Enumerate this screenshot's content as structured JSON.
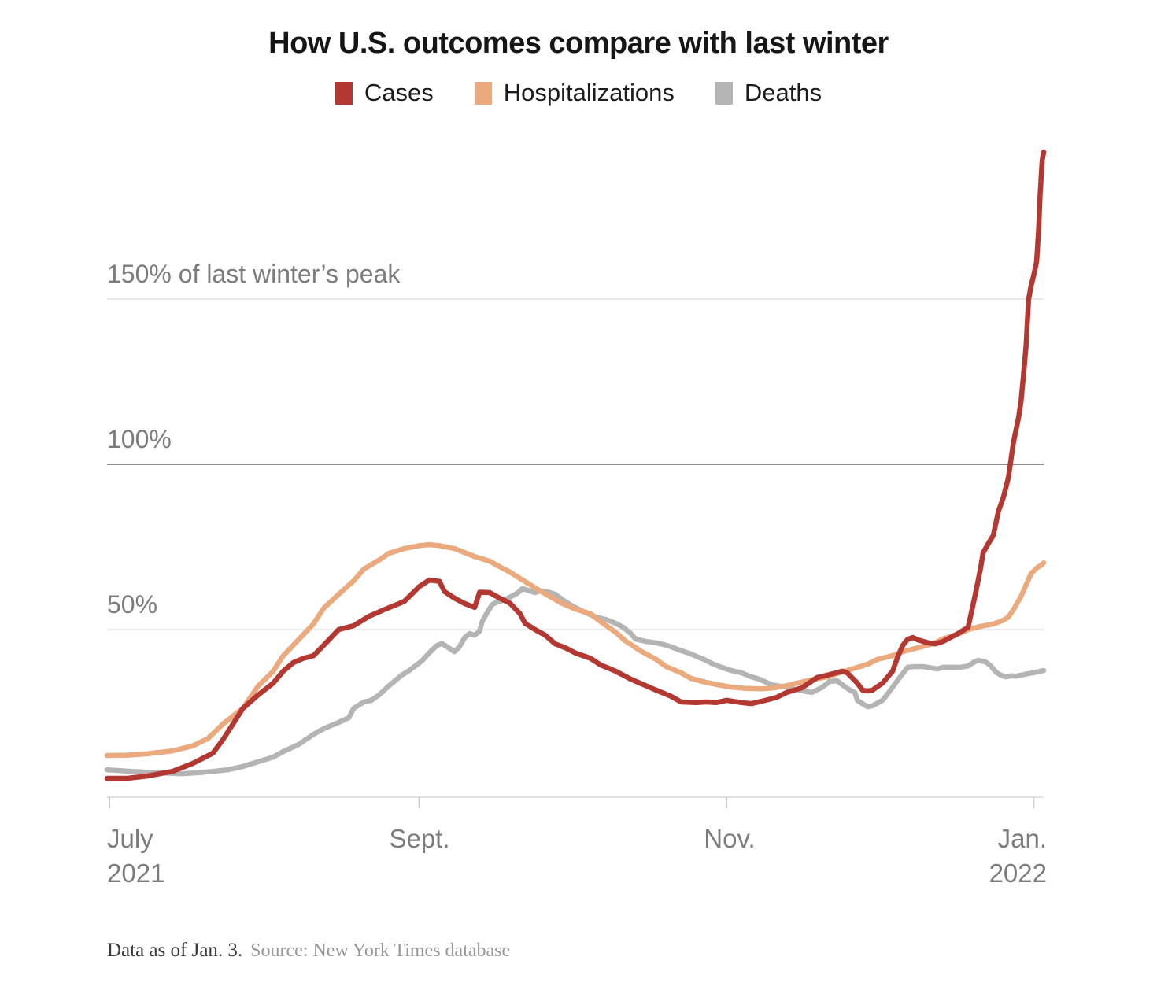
{
  "title": "How U.S. outcomes compare with last winter",
  "footer": {
    "note": "Data as of Jan. 3.",
    "source": "Source: New York Times database"
  },
  "chart_data": {
    "type": "line",
    "title": "How U.S. outcomes compare with last winter",
    "x_unit": "days since July 1, 2021",
    "x_domain": [
      0,
      186
    ],
    "y_unit": "percent of last winter's peak",
    "ylim": [
      0,
      200
    ],
    "grid": "horizontal-only",
    "legend_position": "top-center",
    "gridlines": [
      {
        "value": 50,
        "label": "50%",
        "strong": false
      },
      {
        "value": 100,
        "label": "100%",
        "strong": true
      },
      {
        "value": 150,
        "label": "150% of last winter’s peak",
        "strong": false
      }
    ],
    "x_ticks": [
      {
        "day": 0,
        "label": "July",
        "sublabel": "2021"
      },
      {
        "day": 62,
        "label": "Sept.",
        "sublabel": ""
      },
      {
        "day": 123,
        "label": "Nov.",
        "sublabel": ""
      },
      {
        "day": 184,
        "label": "Jan.",
        "sublabel": "2022"
      }
    ],
    "series": [
      {
        "name": "Cases",
        "color": "#b43832",
        "points": [
          [
            0,
            5
          ],
          [
            4,
            5
          ],
          [
            8,
            5.7
          ],
          [
            13,
            7.1
          ],
          [
            17,
            9.5
          ],
          [
            21,
            12.6
          ],
          [
            23,
            16.7
          ],
          [
            25,
            21.4
          ],
          [
            27,
            26.2
          ],
          [
            30,
            30.2
          ],
          [
            33,
            33.8
          ],
          [
            35,
            37.4
          ],
          [
            37,
            40
          ],
          [
            39,
            41.3
          ],
          [
            41,
            42.1
          ],
          [
            43,
            45.2
          ],
          [
            46,
            50
          ],
          [
            49,
            51.2
          ],
          [
            52,
            54
          ],
          [
            55,
            56
          ],
          [
            59,
            58.5
          ],
          [
            62,
            63
          ],
          [
            64,
            65
          ],
          [
            66,
            64.6
          ],
          [
            67,
            61.5
          ],
          [
            69,
            59.5
          ],
          [
            71,
            57.9
          ],
          [
            73,
            56.7
          ],
          [
            74,
            61.3
          ],
          [
            76,
            61.2
          ],
          [
            78,
            59.5
          ],
          [
            80,
            58
          ],
          [
            82,
            54.8
          ],
          [
            83,
            51.9
          ],
          [
            85,
            50
          ],
          [
            87,
            48.3
          ],
          [
            89,
            45.7
          ],
          [
            91,
            44.5
          ],
          [
            93,
            42.9
          ],
          [
            96,
            41.3
          ],
          [
            98,
            39.3
          ],
          [
            101,
            37.4
          ],
          [
            104,
            35
          ],
          [
            109,
            31.7
          ],
          [
            112,
            29.8
          ],
          [
            114,
            28.1
          ],
          [
            117,
            27.9
          ],
          [
            119,
            28.1
          ],
          [
            121,
            27.9
          ],
          [
            123,
            28.6
          ],
          [
            126,
            27.9
          ],
          [
            128,
            27.6
          ],
          [
            130,
            28.3
          ],
          [
            133,
            29.5
          ],
          [
            135,
            31
          ],
          [
            138,
            32.4
          ],
          [
            141,
            35.5
          ],
          [
            143,
            36.2
          ],
          [
            146,
            37.4
          ],
          [
            147,
            36.9
          ],
          [
            149,
            33.8
          ],
          [
            150,
            31.7
          ],
          [
            151,
            31.4
          ],
          [
            152,
            31.7
          ],
          [
            154,
            33.8
          ],
          [
            156,
            37.4
          ],
          [
            157,
            41.7
          ],
          [
            158,
            45.2
          ],
          [
            159,
            47.1
          ],
          [
            160,
            47.6
          ],
          [
            161,
            46.9
          ],
          [
            163,
            46
          ],
          [
            164.5,
            45.7
          ],
          [
            166,
            46.4
          ],
          [
            167.5,
            47.6
          ],
          [
            169,
            48.8
          ],
          [
            171,
            50.7
          ],
          [
            172,
            57.6
          ],
          [
            172.6,
            62
          ],
          [
            173.4,
            68
          ],
          [
            174,
            73.3
          ],
          [
            175,
            76
          ],
          [
            176,
            78.5
          ],
          [
            177,
            85.7
          ],
          [
            178,
            90
          ],
          [
            179,
            96
          ],
          [
            180,
            106.6
          ],
          [
            181,
            114
          ],
          [
            181.5,
            119
          ],
          [
            182,
            127
          ],
          [
            182.5,
            135.7
          ],
          [
            183,
            149.8
          ],
          [
            183.5,
            154
          ],
          [
            184,
            157
          ],
          [
            184.6,
            161.2
          ],
          [
            185,
            171
          ],
          [
            185.3,
            181.7
          ],
          [
            185.7,
            191.9
          ],
          [
            186,
            194.5
          ]
        ]
      },
      {
        "name": "Hospitalizations",
        "color": "#ebaa7d",
        "points": [
          [
            0,
            11.9
          ],
          [
            4,
            12
          ],
          [
            8,
            12.4
          ],
          [
            13,
            13.3
          ],
          [
            17,
            14.8
          ],
          [
            20,
            17
          ],
          [
            23,
            21.4
          ],
          [
            25,
            23.8
          ],
          [
            27,
            26.2
          ],
          [
            30,
            32.9
          ],
          [
            33,
            37.4
          ],
          [
            35,
            42.1
          ],
          [
            38,
            46.9
          ],
          [
            41,
            51.7
          ],
          [
            43,
            56.4
          ],
          [
            46,
            60.7
          ],
          [
            49,
            64.8
          ],
          [
            51,
            68.3
          ],
          [
            54,
            71
          ],
          [
            56,
            73.1
          ],
          [
            59,
            74.5
          ],
          [
            62,
            75.4
          ],
          [
            64,
            75.7
          ],
          [
            66,
            75.4
          ],
          [
            69,
            74.5
          ],
          [
            71,
            73.3
          ],
          [
            73,
            72.1
          ],
          [
            76,
            70.7
          ],
          [
            78,
            69
          ],
          [
            80,
            67.4
          ],
          [
            82,
            65.5
          ],
          [
            84,
            63.6
          ],
          [
            86,
            61.7
          ],
          [
            88,
            60
          ],
          [
            90,
            58.2
          ],
          [
            93,
            56.2
          ],
          [
            96,
            54.8
          ],
          [
            98,
            52.4
          ],
          [
            101,
            49.2
          ],
          [
            103,
            46.5
          ],
          [
            106,
            43.5
          ],
          [
            109,
            41
          ],
          [
            111,
            38.8
          ],
          [
            114,
            36.9
          ],
          [
            116,
            35.2
          ],
          [
            119,
            34
          ],
          [
            122,
            33.1
          ],
          [
            124,
            32.6
          ],
          [
            127,
            32.2
          ],
          [
            130,
            32.1
          ],
          [
            132,
            32.3
          ],
          [
            135,
            33
          ],
          [
            137,
            33.8
          ],
          [
            140,
            34.8
          ],
          [
            143,
            35.7
          ],
          [
            145,
            36.7
          ],
          [
            148,
            38.1
          ],
          [
            151,
            39.5
          ],
          [
            153,
            41
          ],
          [
            156,
            42.1
          ],
          [
            158,
            43.3
          ],
          [
            161,
            44.5
          ],
          [
            164,
            45.7
          ],
          [
            166,
            47.2
          ],
          [
            169,
            48.6
          ],
          [
            171,
            50
          ],
          [
            173,
            50.8
          ],
          [
            176,
            51.7
          ],
          [
            178,
            52.8
          ],
          [
            179,
            53.8
          ],
          [
            180,
            56
          ],
          [
            181.5,
            60
          ],
          [
            182.5,
            63.5
          ],
          [
            183.5,
            66.9
          ],
          [
            184.6,
            68.6
          ],
          [
            185.5,
            69.5
          ],
          [
            186,
            70.2
          ]
        ]
      },
      {
        "name": "Deaths",
        "color": "#b4b4b4",
        "points": [
          [
            0,
            7.6
          ],
          [
            5,
            7.1
          ],
          [
            10,
            6.7
          ],
          [
            15,
            6.4
          ],
          [
            18,
            6.7
          ],
          [
            21,
            7.1
          ],
          [
            24,
            7.6
          ],
          [
            27,
            8.6
          ],
          [
            30,
            10
          ],
          [
            33,
            11.4
          ],
          [
            35,
            13.1
          ],
          [
            38,
            15.2
          ],
          [
            41,
            18.3
          ],
          [
            43,
            20
          ],
          [
            46,
            21.9
          ],
          [
            48,
            23.3
          ],
          [
            49,
            26.2
          ],
          [
            51,
            28.1
          ],
          [
            52.5,
            28.6
          ],
          [
            54,
            30.2
          ],
          [
            56,
            33
          ],
          [
            58.5,
            36.2
          ],
          [
            60,
            37.6
          ],
          [
            62.5,
            40.5
          ],
          [
            64,
            43
          ],
          [
            65.5,
            45.2
          ],
          [
            66.5,
            45.8
          ],
          [
            68,
            44.3
          ],
          [
            69,
            43.3
          ],
          [
            70,
            44.8
          ],
          [
            71,
            47.5
          ],
          [
            72,
            48.8
          ],
          [
            73,
            48.3
          ],
          [
            74,
            49.5
          ],
          [
            74.5,
            52.4
          ],
          [
            75.5,
            55.2
          ],
          [
            76.5,
            57.6
          ],
          [
            77.5,
            58.3
          ],
          [
            79,
            59
          ],
          [
            80,
            59.8
          ],
          [
            81.5,
            61
          ],
          [
            82.5,
            62.4
          ],
          [
            84,
            61.7
          ],
          [
            85,
            61.2
          ],
          [
            86,
            61.7
          ],
          [
            87.5,
            61.4
          ],
          [
            89,
            60.7
          ],
          [
            90.5,
            59
          ],
          [
            92,
            57.5
          ],
          [
            94.5,
            55.5
          ],
          [
            97,
            53.8
          ],
          [
            99,
            53.1
          ],
          [
            101,
            51.9
          ],
          [
            102.5,
            50.7
          ],
          [
            104,
            48.8
          ],
          [
            105,
            47.1
          ],
          [
            107,
            46.4
          ],
          [
            109,
            46
          ],
          [
            110.5,
            45.5
          ],
          [
            112,
            44.8
          ],
          [
            114,
            43.6
          ],
          [
            115.5,
            42.9
          ],
          [
            117,
            41.9
          ],
          [
            118.5,
            41
          ],
          [
            120,
            39.8
          ],
          [
            122,
            38.6
          ],
          [
            124,
            37.6
          ],
          [
            126,
            36.9
          ],
          [
            128,
            35.7
          ],
          [
            129.5,
            35
          ],
          [
            131,
            34
          ],
          [
            132,
            33.3
          ],
          [
            133.5,
            32.9
          ],
          [
            135,
            32.6
          ],
          [
            136,
            32.1
          ],
          [
            137.5,
            31.7
          ],
          [
            139,
            31.2
          ],
          [
            140,
            31
          ],
          [
            142,
            32.5
          ],
          [
            143.5,
            34.3
          ],
          [
            145,
            34.5
          ],
          [
            146,
            33.3
          ],
          [
            147.5,
            31.7
          ],
          [
            148.5,
            31
          ],
          [
            149,
            28.6
          ],
          [
            150,
            27.6
          ],
          [
            151,
            26.7
          ],
          [
            152,
            26.9
          ],
          [
            154,
            28.6
          ],
          [
            155,
            30.5
          ],
          [
            156,
            32.6
          ],
          [
            157.5,
            35.7
          ],
          [
            159,
            38.6
          ],
          [
            160.5,
            38.8
          ],
          [
            162,
            38.8
          ],
          [
            164,
            38.3
          ],
          [
            165,
            38.1
          ],
          [
            166,
            38.6
          ],
          [
            168,
            38.6
          ],
          [
            169.5,
            38.6
          ],
          [
            171,
            39
          ],
          [
            172,
            40
          ],
          [
            173,
            40.7
          ],
          [
            174.5,
            40.2
          ],
          [
            175.5,
            39
          ],
          [
            176.5,
            37.2
          ],
          [
            177.5,
            36.2
          ],
          [
            178.5,
            35.7
          ],
          [
            179.5,
            36
          ],
          [
            180.5,
            35.9
          ],
          [
            181.5,
            36.2
          ],
          [
            183,
            36.7
          ],
          [
            184.5,
            37.1
          ],
          [
            186,
            37.6
          ]
        ]
      }
    ]
  }
}
